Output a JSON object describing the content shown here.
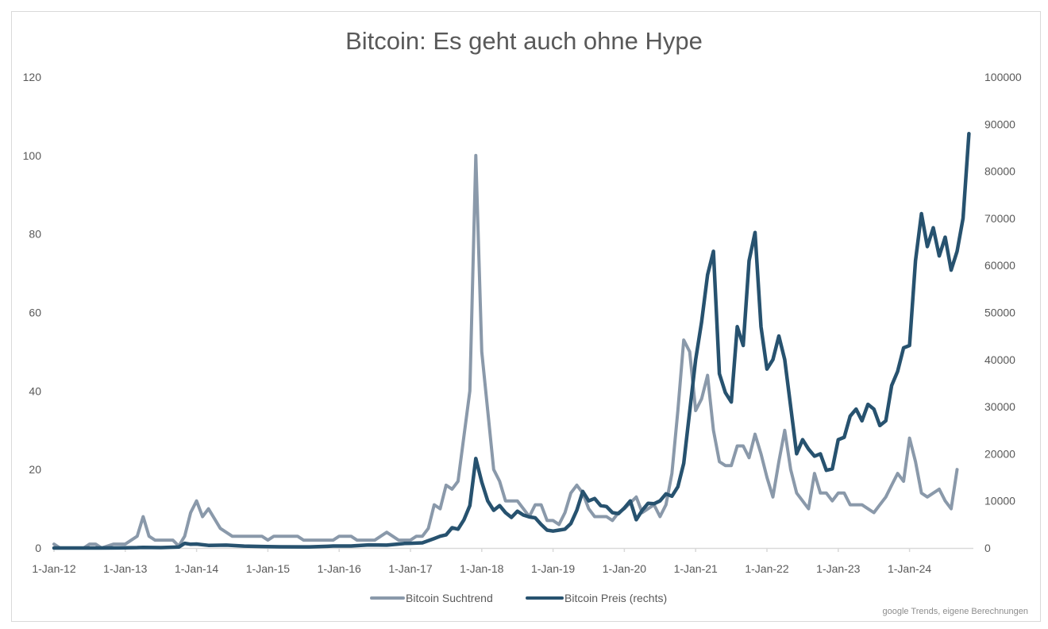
{
  "chart_data": {
    "type": "line",
    "title": "Bitcoin: Es geht auch ohne Hype",
    "source": "google Trends, eigene Berechnungen",
    "x_ticks": [
      "1-Jan-12",
      "1-Jan-13",
      "1-Jan-14",
      "1-Jan-15",
      "1-Jan-16",
      "1-Jan-17",
      "1-Jan-18",
      "1-Jan-19",
      "1-Jan-20",
      "1-Jan-21",
      "1-Jan-22",
      "1-Jan-23",
      "1-Jan-24"
    ],
    "xlim": [
      "2012-01",
      "2024-12"
    ],
    "y_left": {
      "ylim": [
        0,
        120
      ],
      "ticks": [
        "0",
        "20",
        "40",
        "60",
        "80",
        "100",
        "120"
      ]
    },
    "y_right": {
      "ylim": [
        0,
        100000
      ],
      "ticks": [
        "0",
        "10000",
        "20000",
        "30000",
        "40000",
        "50000",
        "60000",
        "70000",
        "80000",
        "90000",
        "100000"
      ]
    },
    "grid": false,
    "legend_position": "bottom",
    "colors": {
      "trend": "#8a99aa",
      "price": "#27526f",
      "text": "#595959",
      "axis": "#d9d9d9"
    },
    "series": [
      {
        "name": "Bitcoin Suchtrend",
        "axis": "left",
        "points": [
          [
            "2012-01",
            1
          ],
          [
            "2012-02",
            0
          ],
          [
            "2012-06",
            0
          ],
          [
            "2012-07",
            1
          ],
          [
            "2012-08",
            1
          ],
          [
            "2012-09",
            0
          ],
          [
            "2012-11",
            1
          ],
          [
            "2013-01",
            1
          ],
          [
            "2013-03",
            3
          ],
          [
            "2013-04",
            8
          ],
          [
            "2013-05",
            3
          ],
          [
            "2013-06",
            2
          ],
          [
            "2013-09",
            2
          ],
          [
            "2013-10",
            0.5
          ],
          [
            "2013-11",
            3
          ],
          [
            "2013-12",
            9
          ],
          [
            "2014-01",
            12
          ],
          [
            "2014-02",
            8
          ],
          [
            "2014-03",
            10
          ],
          [
            "2014-05",
            5
          ],
          [
            "2014-07",
            3
          ],
          [
            "2014-12",
            3
          ],
          [
            "2015-01",
            2
          ],
          [
            "2015-02",
            3
          ],
          [
            "2015-06",
            3
          ],
          [
            "2015-07",
            2
          ],
          [
            "2015-12",
            2
          ],
          [
            "2016-01",
            3
          ],
          [
            "2016-03",
            3
          ],
          [
            "2016-04",
            2
          ],
          [
            "2016-07",
            2
          ],
          [
            "2016-09",
            4
          ],
          [
            "2016-11",
            2
          ],
          [
            "2017-01",
            2
          ],
          [
            "2017-02",
            3
          ],
          [
            "2017-03",
            3
          ],
          [
            "2017-04",
            5
          ],
          [
            "2017-05",
            11
          ],
          [
            "2017-06",
            10
          ],
          [
            "2017-07",
            16
          ],
          [
            "2017-08",
            15
          ],
          [
            "2017-09",
            17
          ],
          [
            "2017-11",
            40
          ],
          [
            "2017-12",
            100
          ],
          [
            "2018-01",
            50
          ],
          [
            "2018-02",
            35
          ],
          [
            "2018-03",
            20
          ],
          [
            "2018-04",
            17
          ],
          [
            "2018-05",
            12
          ],
          [
            "2018-07",
            12
          ],
          [
            "2018-08",
            10
          ],
          [
            "2018-09",
            8
          ],
          [
            "2018-10",
            11
          ],
          [
            "2018-11",
            11
          ],
          [
            "2018-12",
            7
          ],
          [
            "2019-01",
            7
          ],
          [
            "2019-02",
            6
          ],
          [
            "2019-03",
            9
          ],
          [
            "2019-04",
            14
          ],
          [
            "2019-05",
            16
          ],
          [
            "2019-06",
            14
          ],
          [
            "2019-07",
            10
          ],
          [
            "2019-08",
            8
          ],
          [
            "2019-10",
            8
          ],
          [
            "2019-11",
            7
          ],
          [
            "2019-12",
            9
          ],
          [
            "2020-01",
            10
          ],
          [
            "2020-03",
            13
          ],
          [
            "2020-04",
            9
          ],
          [
            "2020-06",
            11
          ],
          [
            "2020-07",
            8
          ],
          [
            "2020-08",
            11
          ],
          [
            "2020-09",
            19
          ],
          [
            "2020-10",
            35
          ],
          [
            "2020-11",
            53
          ],
          [
            "2020-12",
            50
          ],
          [
            "2021-01",
            35
          ],
          [
            "2021-02",
            38
          ],
          [
            "2021-03",
            44
          ],
          [
            "2021-04",
            30
          ],
          [
            "2021-05",
            22
          ],
          [
            "2021-06",
            21
          ],
          [
            "2021-07",
            21
          ],
          [
            "2021-08",
            26
          ],
          [
            "2021-09",
            26
          ],
          [
            "2021-10",
            23
          ],
          [
            "2021-11",
            29
          ],
          [
            "2021-12",
            24
          ],
          [
            "2022-01",
            18
          ],
          [
            "2022-02",
            13
          ],
          [
            "2022-03",
            22
          ],
          [
            "2022-04",
            30
          ],
          [
            "2022-05",
            20
          ],
          [
            "2022-06",
            14
          ],
          [
            "2022-07",
            12
          ],
          [
            "2022-08",
            10
          ],
          [
            "2022-09",
            19
          ],
          [
            "2022-10",
            14
          ],
          [
            "2022-11",
            14
          ],
          [
            "2022-12",
            12
          ],
          [
            "2023-01",
            14
          ],
          [
            "2023-02",
            14
          ],
          [
            "2023-03",
            11
          ],
          [
            "2023-05",
            11
          ],
          [
            "2023-06",
            10
          ],
          [
            "2023-07",
            9
          ],
          [
            "2023-08",
            11
          ],
          [
            "2023-09",
            13
          ],
          [
            "2023-10",
            16
          ],
          [
            "2023-11",
            19
          ],
          [
            "2023-12",
            17
          ],
          [
            "2024-01",
            28
          ],
          [
            "2024-02",
            22
          ],
          [
            "2024-03",
            14
          ],
          [
            "2024-04",
            13
          ],
          [
            "2024-05",
            14
          ],
          [
            "2024-06",
            15
          ],
          [
            "2024-07",
            12
          ],
          [
            "2024-08",
            10
          ],
          [
            "2024-09",
            20
          ]
        ]
      },
      {
        "name": "Bitcoin Preis (rechts)",
        "axis": "right",
        "points": [
          [
            "2012-01",
            6
          ],
          [
            "2012-06",
            6
          ],
          [
            "2012-12",
            13
          ],
          [
            "2013-03",
            90
          ],
          [
            "2013-04",
            140
          ],
          [
            "2013-07",
            90
          ],
          [
            "2013-10",
            200
          ],
          [
            "2013-11",
            1000
          ],
          [
            "2013-12",
            800
          ],
          [
            "2014-01",
            850
          ],
          [
            "2014-03",
            550
          ],
          [
            "2014-06",
            600
          ],
          [
            "2014-09",
            400
          ],
          [
            "2014-12",
            320
          ],
          [
            "2015-03",
            250
          ],
          [
            "2015-08",
            230
          ],
          [
            "2015-11",
            350
          ],
          [
            "2015-12",
            430
          ],
          [
            "2016-03",
            420
          ],
          [
            "2016-06",
            650
          ],
          [
            "2016-09",
            610
          ],
          [
            "2016-12",
            960
          ],
          [
            "2017-01",
            1000
          ],
          [
            "2017-03",
            1100
          ],
          [
            "2017-05",
            2000
          ],
          [
            "2017-06",
            2500
          ],
          [
            "2017-07",
            2800
          ],
          [
            "2017-08",
            4300
          ],
          [
            "2017-09",
            4000
          ],
          [
            "2017-10",
            6000
          ],
          [
            "2017-11",
            9000
          ],
          [
            "2017-12",
            19000
          ],
          [
            "2018-01",
            14000
          ],
          [
            "2018-02",
            10000
          ],
          [
            "2018-03",
            8000
          ],
          [
            "2018-04",
            9000
          ],
          [
            "2018-05",
            7500
          ],
          [
            "2018-06",
            6500
          ],
          [
            "2018-07",
            7800
          ],
          [
            "2018-08",
            7000
          ],
          [
            "2018-09",
            6600
          ],
          [
            "2018-10",
            6400
          ],
          [
            "2018-11",
            5000
          ],
          [
            "2018-12",
            3800
          ],
          [
            "2019-01",
            3600
          ],
          [
            "2019-02",
            3800
          ],
          [
            "2019-03",
            4000
          ],
          [
            "2019-04",
            5200
          ],
          [
            "2019-05",
            8000
          ],
          [
            "2019-06",
            12000
          ],
          [
            "2019-07",
            10000
          ],
          [
            "2019-08",
            10500
          ],
          [
            "2019-09",
            9000
          ],
          [
            "2019-10",
            8800
          ],
          [
            "2019-11",
            7500
          ],
          [
            "2019-12",
            7300
          ],
          [
            "2020-01",
            8500
          ],
          [
            "2020-02",
            10000
          ],
          [
            "2020-03",
            6000
          ],
          [
            "2020-04",
            8000
          ],
          [
            "2020-05",
            9500
          ],
          [
            "2020-06",
            9400
          ],
          [
            "2020-07",
            10000
          ],
          [
            "2020-08",
            11500
          ],
          [
            "2020-09",
            11000
          ],
          [
            "2020-10",
            13000
          ],
          [
            "2020-11",
            18000
          ],
          [
            "2020-12",
            29000
          ],
          [
            "2021-01",
            40000
          ],
          [
            "2021-02",
            48000
          ],
          [
            "2021-03",
            58000
          ],
          [
            "2021-04",
            63000
          ],
          [
            "2021-05",
            37000
          ],
          [
            "2021-06",
            33000
          ],
          [
            "2021-07",
            31000
          ],
          [
            "2021-08",
            47000
          ],
          [
            "2021-09",
            43000
          ],
          [
            "2021-10",
            61000
          ],
          [
            "2021-11",
            67000
          ],
          [
            "2021-12",
            47000
          ],
          [
            "2022-01",
            38000
          ],
          [
            "2022-02",
            40000
          ],
          [
            "2022-03",
            45000
          ],
          [
            "2022-04",
            40000
          ],
          [
            "2022-05",
            30000
          ],
          [
            "2022-06",
            20000
          ],
          [
            "2022-07",
            23000
          ],
          [
            "2022-08",
            21000
          ],
          [
            "2022-09",
            19500
          ],
          [
            "2022-10",
            20000
          ],
          [
            "2022-11",
            16500
          ],
          [
            "2022-12",
            16800
          ],
          [
            "2023-01",
            23000
          ],
          [
            "2023-02",
            23500
          ],
          [
            "2023-03",
            28000
          ],
          [
            "2023-04",
            29500
          ],
          [
            "2023-05",
            27000
          ],
          [
            "2023-06",
            30500
          ],
          [
            "2023-07",
            29500
          ],
          [
            "2023-08",
            26000
          ],
          [
            "2023-09",
            27000
          ],
          [
            "2023-10",
            34500
          ],
          [
            "2023-11",
            37500
          ],
          [
            "2023-12",
            42500
          ],
          [
            "2024-01",
            43000
          ],
          [
            "2024-02",
            61000
          ],
          [
            "2024-03",
            71000
          ],
          [
            "2024-04",
            64000
          ],
          [
            "2024-05",
            68000
          ],
          [
            "2024-06",
            62000
          ],
          [
            "2024-07",
            66000
          ],
          [
            "2024-08",
            59000
          ],
          [
            "2024-09",
            63000
          ],
          [
            "2024-10",
            70000
          ],
          [
            "2024-11",
            88000
          ]
        ]
      }
    ]
  }
}
